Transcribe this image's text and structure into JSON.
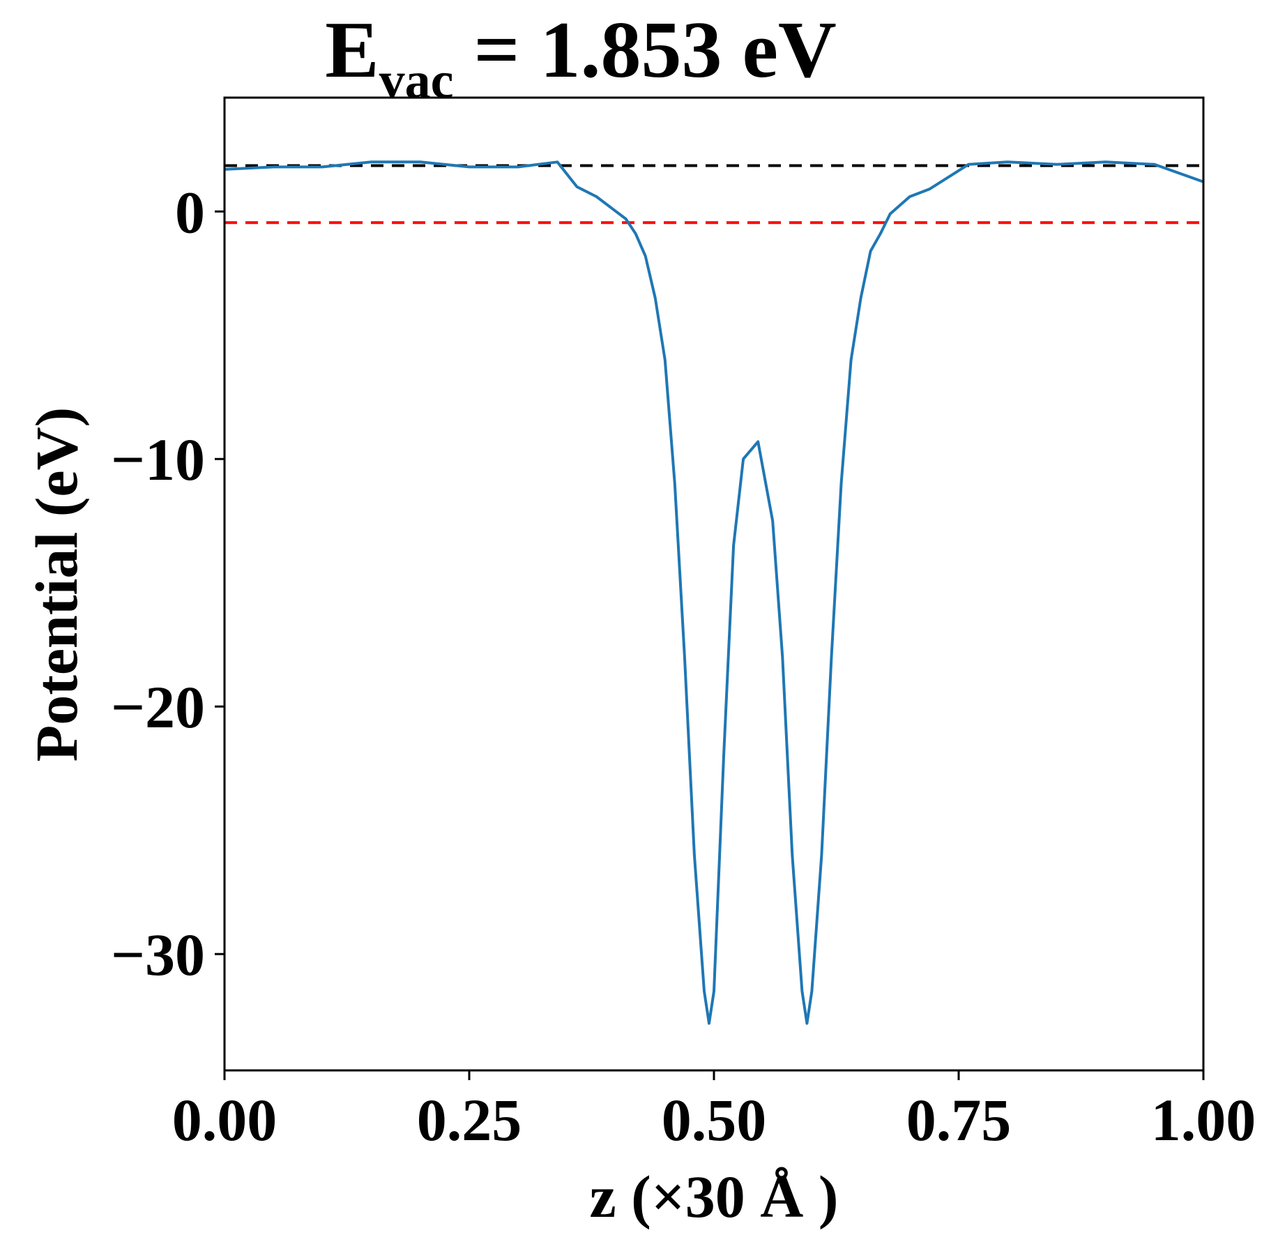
{
  "chart_data": {
    "type": "line",
    "title": {
      "main": "E",
      "subscript": "vac",
      "rest": " = 1.853 eV"
    },
    "xlabel": "z (×30 Å )",
    "ylabel": "Potential (eV)",
    "xlim": [
      0.0,
      1.0
    ],
    "ylim": [
      -34.7,
      4.6
    ],
    "x_ticks": [
      0.0,
      0.25,
      0.5,
      0.75,
      1.0
    ],
    "x_tick_labels": [
      "0.00",
      "0.25",
      "0.50",
      "0.75",
      "1.00"
    ],
    "y_ticks": [
      0,
      -10,
      -20,
      -30
    ],
    "y_tick_labels": [
      "0",
      "−10",
      "−20",
      "−30"
    ],
    "grid": false,
    "legend": "none",
    "reference_lines": [
      {
        "y": 1.853,
        "color": "#000000",
        "style": "dashed"
      },
      {
        "y": -0.45,
        "color": "#ff0000",
        "style": "dashed"
      }
    ],
    "series": [
      {
        "color": "#1f77b4",
        "x": [
          0.0,
          0.05,
          0.1,
          0.15,
          0.2,
          0.25,
          0.3,
          0.34,
          0.36,
          0.38,
          0.4,
          0.41,
          0.42,
          0.43,
          0.44,
          0.45,
          0.46,
          0.47,
          0.48,
          0.49,
          0.495,
          0.5,
          0.51,
          0.52,
          0.53,
          0.545,
          0.56,
          0.57,
          0.58,
          0.59,
          0.595,
          0.6,
          0.61,
          0.62,
          0.63,
          0.64,
          0.65,
          0.66,
          0.67,
          0.68,
          0.7,
          0.72,
          0.74,
          0.76,
          0.8,
          0.85,
          0.9,
          0.95,
          1.0
        ],
        "y": [
          1.7,
          1.8,
          1.8,
          2.0,
          2.0,
          1.8,
          1.8,
          2.0,
          1.0,
          0.6,
          0.0,
          -0.3,
          -0.9,
          -1.8,
          -3.5,
          -6.0,
          -11.0,
          -18.0,
          -26.0,
          -31.5,
          -32.8,
          -31.5,
          -22.0,
          -13.5,
          -10.0,
          -9.3,
          -12.5,
          -18.0,
          -26.0,
          -31.5,
          -32.8,
          -31.5,
          -26.0,
          -18.0,
          -11.0,
          -6.0,
          -3.5,
          -1.6,
          -0.9,
          -0.1,
          0.6,
          0.9,
          1.4,
          1.9,
          2.0,
          1.9,
          2.0,
          1.9,
          1.2
        ]
      }
    ]
  }
}
